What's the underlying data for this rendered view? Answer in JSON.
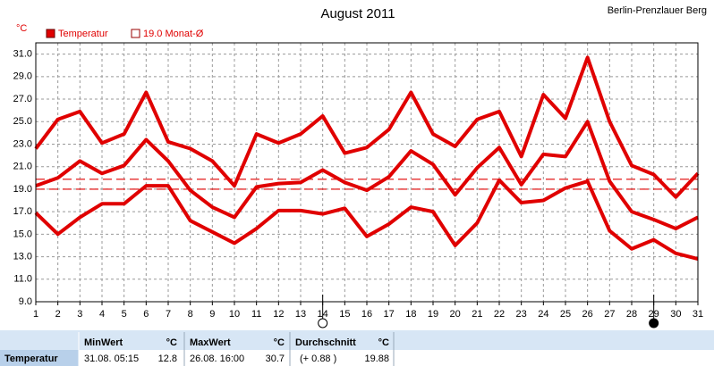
{
  "chart_data": {
    "type": "line",
    "title": "August 2011",
    "location": "Berlin-Prenzlauer Berg",
    "y_unit": "°C",
    "legend": [
      {
        "label": "Temperatur",
        "color": "#e00000",
        "filled": true
      },
      {
        "label": "19.0 Monat-Ø",
        "color": "#e00000",
        "filled": false
      }
    ],
    "x": [
      1,
      2,
      3,
      4,
      5,
      6,
      7,
      8,
      9,
      10,
      11,
      12,
      13,
      14,
      15,
      16,
      17,
      18,
      19,
      20,
      21,
      22,
      23,
      24,
      25,
      26,
      27,
      28,
      29,
      30,
      31
    ],
    "xlim": [
      1,
      31
    ],
    "xticks": [
      1,
      2,
      3,
      4,
      5,
      6,
      7,
      8,
      9,
      10,
      11,
      12,
      13,
      14,
      15,
      16,
      17,
      18,
      19,
      20,
      21,
      22,
      23,
      24,
      25,
      26,
      27,
      28,
      29,
      30,
      31
    ],
    "ylim": [
      9,
      32
    ],
    "yticks": [
      {
        "value": 9,
        "label": "9.0"
      },
      {
        "value": 11,
        "label": "11.0"
      },
      {
        "value": 13,
        "label": "13.0"
      },
      {
        "value": 15,
        "label": "15.0"
      },
      {
        "value": 17,
        "label": "17.0"
      },
      {
        "value": 19,
        "label": "19.0"
      },
      {
        "value": 21,
        "label": "21.0"
      },
      {
        "value": 23,
        "label": "23.0"
      },
      {
        "value": 25,
        "label": "25.0"
      },
      {
        "value": 27,
        "label": "27.0"
      },
      {
        "value": 29,
        "label": "29.0"
      },
      {
        "value": 31,
        "label": "31.0"
      }
    ],
    "grid": true,
    "series": [
      {
        "color": "#e00000",
        "values": [
          22.6,
          25.2,
          25.9,
          23.1,
          23.9,
          27.6,
          23.2,
          22.6,
          21.5,
          19.3,
          23.9,
          23.1,
          23.9,
          25.5,
          22.2,
          22.7,
          24.3,
          27.6,
          23.9,
          22.8,
          25.2,
          25.9,
          21.9,
          27.4,
          25.3,
          30.7,
          25.0,
          21.1,
          20.3,
          18.3,
          20.4
        ]
      },
      {
        "color": "#e00000",
        "values": [
          19.3,
          20.0,
          21.5,
          20.4,
          21.1,
          23.4,
          21.5,
          18.9,
          17.4,
          16.5,
          19.2,
          19.5,
          19.6,
          20.7,
          19.6,
          18.9,
          20.1,
          22.4,
          21.2,
          18.5,
          20.9,
          22.7,
          19.4,
          22.1,
          21.9,
          25.0,
          19.7,
          17.0,
          16.3,
          15.5,
          16.5
        ]
      },
      {
        "color": "#e00000",
        "values": [
          16.9,
          15.0,
          16.5,
          17.7,
          17.7,
          19.3,
          19.3,
          16.2,
          15.2,
          14.2,
          15.5,
          17.1,
          17.1,
          16.8,
          17.3,
          14.8,
          15.9,
          17.4,
          17.0,
          14.0,
          16.0,
          19.8,
          17.8,
          18.0,
          19.1,
          19.7,
          15.3,
          13.7,
          14.5,
          13.3,
          12.8
        ]
      }
    ],
    "reference_lines": [
      {
        "value": 19.0,
        "color": "#e00000"
      },
      {
        "value": 19.88,
        "color": "#e00000"
      }
    ],
    "moon_phases": [
      {
        "day": 14,
        "phase": "full"
      },
      {
        "day": 29,
        "phase": "new"
      }
    ]
  },
  "stats_table": {
    "row_label": "Temperatur",
    "columns": [
      {
        "header": "MinWert",
        "unit": "°C",
        "detail": "31.08. 05:15",
        "value": 12.8
      },
      {
        "header": "MaxWert",
        "unit": "°C",
        "detail": "26.08. 16:00",
        "value": 30.7
      },
      {
        "header": "Durchschnitt",
        "unit": "°C",
        "detail": "(+ 0.88 )",
        "value": 19.88
      }
    ]
  }
}
